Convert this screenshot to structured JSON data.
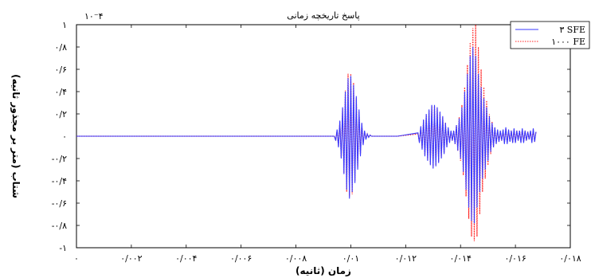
{
  "chart_data": {
    "type": "line",
    "title": "پاسخ تاریخچه زمانی",
    "xlabel": "زمان (ثانیه)",
    "ylabel": "شتاب (متر بر مجذور ثانیه)",
    "y_scale_label": "۱۰⁻۴",
    "xlim": [
      0,
      0.018
    ],
    "ylim": [
      -1,
      1
    ],
    "x_tick_values": [
      0,
      0.002,
      0.004,
      0.006,
      0.008,
      0.01,
      0.012,
      0.014,
      0.016,
      0.018
    ],
    "x_tick_labels": [
      "۰",
      "۰/۰۰۲",
      "۰/۰۰۴",
      "۰/۰۰۶",
      "۰/۰۰۸",
      "۰/۰۱",
      "۰/۰۱۲",
      "۰/۰۱۴",
      "۰/۰۱۶",
      "۰/۰۱۸"
    ],
    "y_tick_values": [
      1,
      0.8,
      0.6,
      0.4,
      0.2,
      0,
      -0.2,
      -0.4,
      -0.6,
      -0.8,
      -1
    ],
    "y_tick_labels": [
      "۱",
      "۰/۸",
      "۰/۶",
      "۰/۴",
      "۰/۲",
      "۰",
      "-۰/۲",
      "-۰/۴",
      "-۰/۶",
      "-۰/۸",
      "-۱"
    ],
    "legend_position": "top-right",
    "grid": false,
    "series": [
      {
        "name": "۳ SFE",
        "color": "#3a3aff",
        "style": "solid",
        "x": [
          0,
          0.0094,
          0.00945,
          0.0095,
          0.00955,
          0.0096,
          0.00965,
          0.0097,
          0.00975,
          0.0098,
          0.00985,
          0.0099,
          0.00995,
          0.01,
          0.01005,
          0.0101,
          0.01015,
          0.0102,
          0.01025,
          0.0103,
          0.01035,
          0.0104,
          0.01045,
          0.0105,
          0.01055,
          0.0106,
          0.01065,
          0.0107,
          0.01075,
          0.0108,
          0.0117,
          0.01245,
          0.0125,
          0.01255,
          0.0126,
          0.01265,
          0.0127,
          0.01275,
          0.0128,
          0.01285,
          0.0129,
          0.01295,
          0.013,
          0.01305,
          0.0131,
          0.01315,
          0.0132,
          0.01325,
          0.0133,
          0.01335,
          0.0134,
          0.01345,
          0.0135,
          0.01355,
          0.0136,
          0.01365,
          0.0137,
          0.01375,
          0.0138,
          0.01385,
          0.0139,
          0.01395,
          0.014,
          0.01405,
          0.0141,
          0.01415,
          0.0142,
          0.01425,
          0.0143,
          0.01435,
          0.0144,
          0.01445,
          0.0145,
          0.01455,
          0.0146,
          0.01465,
          0.0147,
          0.01475,
          0.0148,
          0.01485,
          0.0149,
          0.01495,
          0.015,
          0.01505,
          0.0151,
          0.01515,
          0.0152,
          0.01525,
          0.0153,
          0.01535,
          0.0154,
          0.01545,
          0.0155,
          0.01555,
          0.0156,
          0.01565,
          0.0157,
          0.01575,
          0.0158,
          0.01585,
          0.0159,
          0.01595,
          0.016,
          0.01605,
          0.0161,
          0.01615,
          0.0162,
          0.01625,
          0.0163,
          0.01635,
          0.0164,
          0.01645,
          0.0165,
          0.01655,
          0.0166,
          0.01665,
          0.0167,
          0.01675
        ],
        "y": [
          0,
          0,
          -0.04,
          0.06,
          -0.1,
          0.14,
          -0.2,
          0.26,
          -0.34,
          0.4,
          -0.48,
          0.52,
          -0.56,
          0.54,
          -0.5,
          0.46,
          -0.42,
          0.36,
          -0.3,
          0.24,
          -0.18,
          0.12,
          -0.08,
          0.05,
          -0.03,
          0.02,
          -0.01,
          0.01,
          0,
          0,
          0,
          0.03,
          -0.06,
          0.09,
          -0.12,
          0.15,
          -0.18,
          0.2,
          -0.22,
          0.24,
          -0.26,
          0.28,
          -0.29,
          0.28,
          -0.27,
          0.26,
          -0.24,
          0.22,
          -0.2,
          0.18,
          -0.16,
          0.12,
          -0.1,
          0.08,
          -0.06,
          0.05,
          -0.04,
          0.05,
          -0.07,
          0.1,
          -0.13,
          0.16,
          -0.2,
          0.26,
          -0.32,
          0.4,
          -0.48,
          0.56,
          -0.64,
          0.72,
          -0.76,
          0.8,
          -0.78,
          0.72,
          -0.64,
          0.56,
          -0.5,
          0.44,
          -0.38,
          0.34,
          -0.3,
          0.26,
          -0.22,
          0.18,
          -0.14,
          0.12,
          -0.1,
          0.08,
          -0.07,
          0.06,
          -0.05,
          0.05,
          -0.04,
          0.06,
          -0.07,
          0.08,
          -0.07,
          0.06,
          -0.05,
          0.05,
          -0.06,
          0.07,
          -0.06,
          0.05,
          -0.04,
          0.05,
          -0.06,
          0.07,
          -0.06,
          0.05,
          -0.04,
          0.04,
          -0.03,
          0.05,
          -0.06,
          0.07,
          -0.05,
          0.04
        ]
      },
      {
        "name": "۱۰۰۰ FE",
        "color": "#ff2020",
        "style": "dotted",
        "x": [
          0,
          0.0094,
          0.00945,
          0.0095,
          0.00955,
          0.0096,
          0.00965,
          0.0097,
          0.00975,
          0.0098,
          0.00985,
          0.0099,
          0.00995,
          0.01,
          0.01005,
          0.0101,
          0.01015,
          0.0102,
          0.01025,
          0.0103,
          0.01035,
          0.0104,
          0.01045,
          0.0105,
          0.01055,
          0.0106,
          0.01065,
          0.0107,
          0.01075,
          0.0108,
          0.0117,
          0.01245,
          0.0125,
          0.01255,
          0.0126,
          0.01265,
          0.0127,
          0.01275,
          0.0128,
          0.01285,
          0.0129,
          0.01295,
          0.013,
          0.01305,
          0.0131,
          0.01315,
          0.0132,
          0.01325,
          0.0133,
          0.01335,
          0.0134,
          0.01345,
          0.0135,
          0.01355,
          0.0136,
          0.01365,
          0.0137,
          0.01375,
          0.0138,
          0.01385,
          0.0139,
          0.01395,
          0.014,
          0.01405,
          0.0141,
          0.01415,
          0.0142,
          0.01425,
          0.0143,
          0.01435,
          0.0144,
          0.01445,
          0.0145,
          0.01455,
          0.0146,
          0.01465,
          0.0147,
          0.01475,
          0.0148,
          0.01485,
          0.0149,
          0.01495,
          0.015,
          0.01505,
          0.0151,
          0.01515,
          0.0152,
          0.01525,
          0.0153,
          0.01535,
          0.0154,
          0.01545,
          0.0155,
          0.01555,
          0.0156,
          0.01565,
          0.0157,
          0.01575,
          0.0158,
          0.01585,
          0.0159,
          0.01595,
          0.016,
          0.01605,
          0.0161,
          0.01615,
          0.0162,
          0.01625,
          0.0163,
          0.01635,
          0.0164,
          0.01645,
          0.0165,
          0.01655,
          0.0166,
          0.01665,
          0.0167,
          0.01675
        ],
        "y": [
          0,
          0,
          -0.03,
          0.05,
          -0.09,
          0.13,
          -0.19,
          0.25,
          -0.33,
          0.41,
          -0.5,
          0.56,
          -0.54,
          0.56,
          -0.52,
          0.48,
          -0.4,
          0.34,
          -0.28,
          0.22,
          -0.16,
          0.11,
          -0.07,
          0.04,
          -0.02,
          0.02,
          -0.01,
          0.01,
          0,
          0,
          0,
          0.02,
          -0.05,
          0.08,
          -0.11,
          0.14,
          -0.17,
          0.19,
          -0.21,
          0.23,
          -0.25,
          0.27,
          -0.28,
          0.27,
          -0.26,
          0.25,
          -0.23,
          0.21,
          -0.19,
          0.17,
          -0.15,
          0.12,
          -0.09,
          0.07,
          -0.05,
          0.04,
          -0.04,
          0.05,
          -0.07,
          0.1,
          -0.13,
          0.17,
          -0.22,
          0.28,
          -0.35,
          0.44,
          -0.54,
          0.64,
          -0.74,
          0.84,
          -0.9,
          0.97,
          -0.94,
          1.0,
          -0.9,
          0.8,
          -0.7,
          0.6,
          -0.5,
          0.44,
          -0.38,
          0.32,
          -0.26,
          0.2,
          -0.16,
          0.13,
          -0.1,
          0.08,
          -0.06,
          0.05,
          -0.05,
          0.04,
          -0.04,
          0.05,
          -0.06,
          0.07,
          -0.06,
          0.05,
          -0.05,
          0.05,
          -0.06,
          0.06,
          -0.05,
          0.05,
          -0.04,
          0.05,
          -0.05,
          0.06,
          -0.05,
          0.05,
          -0.04,
          0.04,
          -0.03,
          0.04,
          -0.05,
          0.06,
          -0.05,
          0.04
        ]
      }
    ]
  }
}
